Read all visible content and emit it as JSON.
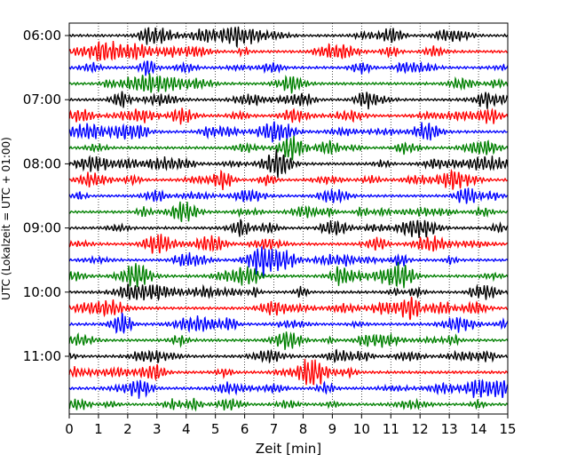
{
  "chart_data": {
    "type": "line",
    "title": "",
    "xlabel": "Zeit  [min]",
    "ylabel": "UTC (Lokalzeit = UTC + 01:00)",
    "xlim": [
      0,
      15
    ],
    "x_ticks": [
      0,
      1,
      2,
      3,
      4,
      5,
      6,
      7,
      8,
      9,
      10,
      11,
      12,
      13,
      14,
      15
    ],
    "y_tick_labels": [
      "06:00",
      "07:00",
      "08:00",
      "09:00",
      "10:00",
      "11:00"
    ],
    "traces_per_hour": 4,
    "trace_count": 24,
    "trace_start_hours": [
      "06:00",
      "06:15",
      "06:30",
      "06:45",
      "07:00",
      "07:15",
      "07:30",
      "07:45",
      "08:00",
      "08:15",
      "08:30",
      "08:45",
      "09:00",
      "09:15",
      "09:30",
      "09:45",
      "10:00",
      "10:15",
      "10:30",
      "10:45",
      "11:00",
      "11:15",
      "11:30",
      "11:45"
    ],
    "trace_colors": [
      "#000000",
      "#ff0000",
      "#0000ff",
      "#008000"
    ],
    "grid": {
      "vertical": true,
      "style": "dotted"
    },
    "legend": "none"
  }
}
